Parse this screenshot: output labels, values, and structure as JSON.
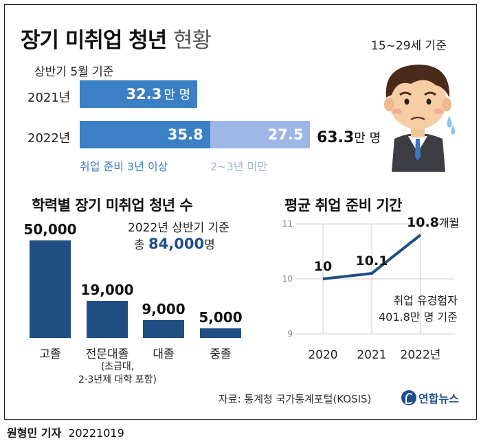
{
  "title": {
    "main": "장기 미취업 청년",
    "light": "현황"
  },
  "age_basis": "15~29세 기준",
  "top_chart": {
    "basis": "상반기 5월 기준",
    "unit": "만 명",
    "rows": [
      {
        "year": "2021년",
        "segments": [
          {
            "value_label": "32.3",
            "unit": "만 명"
          }
        ]
      },
      {
        "year": "2022년",
        "segments": [
          {
            "value_label": "35.8"
          },
          {
            "value_label": "27.5"
          }
        ],
        "total": "63.3"
      }
    ],
    "legend": [
      "취업 준비 3년 이상",
      "2~3년 미만"
    ]
  },
  "edu_chart": {
    "title": "학력별 장기 미취업 청년 수",
    "basis": "2022년 상반기 기준",
    "total_prefix": "총",
    "total_value": "84,000",
    "total_unit": "명",
    "notes": [
      "(초급대,",
      "2·3년제 대학 포함)"
    ]
  },
  "duration_chart": {
    "title": "평균 취업 준비 기간",
    "point_unit": "개월",
    "note": [
      "취업 유경험자",
      "401.8만 명 기준"
    ],
    "last_label": "2022년"
  },
  "source": "자료: 통계청 국가통계포털(KOSIS)",
  "logo_text": "연합뉴스",
  "credit": {
    "name": "원형민 기자",
    "date": "20221019"
  },
  "colors": {
    "dark_blue": "#1f4e82",
    "mid_blue": "#3b7fc4",
    "light_blue": "#9db6e6",
    "accent_blue": "#1f4e8c"
  },
  "chart_data": [
    {
      "type": "bar",
      "orientation": "horizontal",
      "stacked": true,
      "categories": [
        "2021년",
        "2022년"
      ],
      "series": [
        {
          "name": "취업 준비 3년 이상",
          "values": [
            32.3,
            35.8
          ]
        },
        {
          "name": "2~3년 미만",
          "values": [
            null,
            27.5
          ]
        }
      ],
      "totals": [
        32.3,
        63.3
      ],
      "unit": "만 명"
    },
    {
      "type": "bar",
      "title": "학력별 장기 미취업 청년 수",
      "categories": [
        "고졸",
        "전문대졸",
        "대졸",
        "중졸"
      ],
      "values": [
        50000,
        19000,
        9000,
        5000
      ],
      "value_labels": [
        "50,000",
        "19,000",
        "9,000",
        "5,000"
      ]
    },
    {
      "type": "line",
      "title": "평균 취업 준비 기간",
      "x": [
        "2020",
        "2021",
        "2022"
      ],
      "y": [
        10,
        10.1,
        10.8
      ],
      "value_labels": [
        "10",
        "10.1",
        "10.8"
      ],
      "ylim": [
        9,
        11
      ],
      "yticks": [
        "9",
        "10",
        "11"
      ],
      "grid": true
    }
  ]
}
